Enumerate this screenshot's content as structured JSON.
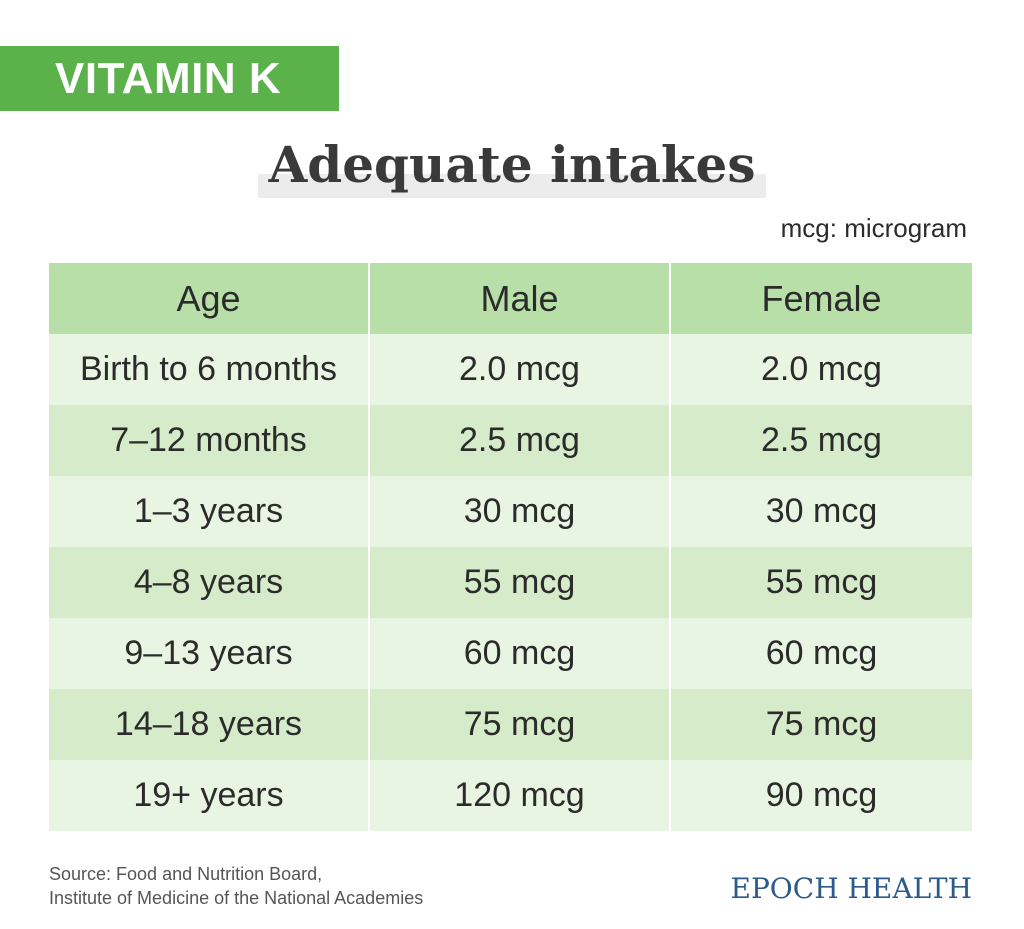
{
  "header": {
    "banner_label": "VITAMIN K",
    "title": "Adequate intakes",
    "unit_note": "mcg: microgram"
  },
  "table": {
    "columns": [
      "Age",
      "Male",
      "Female"
    ],
    "rows": [
      [
        "Birth to 6 months",
        "2.0 mcg",
        "2.0 mcg"
      ],
      [
        "7–12 months",
        "2.5 mcg",
        "2.5 mcg"
      ],
      [
        "1–3 years",
        "30 mcg",
        "30 mcg"
      ],
      [
        "4–8 years",
        "55 mcg",
        "55 mcg"
      ],
      [
        "9–13 years",
        "60 mcg",
        "60 mcg"
      ],
      [
        "14–18 years",
        "75 mcg",
        "75 mcg"
      ],
      [
        "19+ years",
        "120 mcg",
        "90 mcg"
      ]
    ]
  },
  "footer": {
    "source_line1": "Source:  Food and Nutrition Board,",
    "source_line2": "Institute of Medicine of the National Academies",
    "brand": "EPOCH HEALTH"
  },
  "colors": {
    "banner": "#5bb14a",
    "header_row": "#b9dfa9",
    "row_light": "#e9f5e3",
    "row_dark": "#d6ebca",
    "brand": "#2c5a8c"
  }
}
